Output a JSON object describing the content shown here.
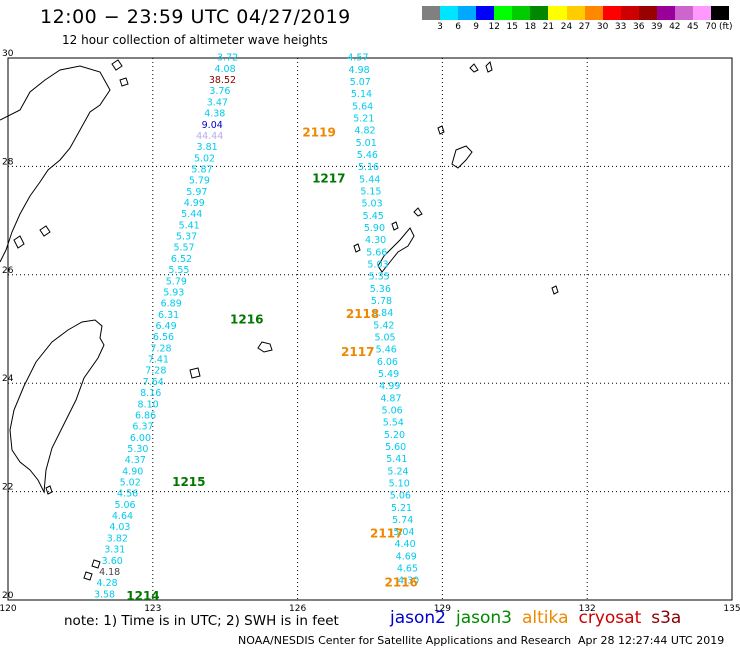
{
  "title": "12:00 − 23:59 UTC 04/27/2019",
  "subtitle": "12 hour collection of altimeter wave heights",
  "colorbar": {
    "unit": "(ft)",
    "colors": [
      "#808080",
      "#00e5ff",
      "#00a8ff",
      "#0000ff",
      "#00ff00",
      "#00cc00",
      "#008800",
      "#ffff00",
      "#ffcc00",
      "#ff8800",
      "#ff0000",
      "#cc0000",
      "#990000",
      "#990099",
      "#cc66cc",
      "#ff99ff",
      "#000000"
    ],
    "labels": [
      "3",
      "6",
      "9",
      "12",
      "15",
      "18",
      "21",
      "24",
      "27",
      "30",
      "33",
      "36",
      "39",
      "42",
      "45",
      "70"
    ]
  },
  "axes": {
    "lon_labels": [
      "120",
      "123",
      "126",
      "129",
      "132",
      "135"
    ],
    "lat_labels": [
      "30",
      "28",
      "26",
      "24",
      "22",
      "20"
    ]
  },
  "tracks": [
    {
      "id": "west",
      "color": "#00ccee",
      "values": [
        "3.72",
        "4.08",
        "38.52",
        "3.76",
        "3.47",
        "4.38",
        "9.04",
        "44.44",
        "3.81",
        "5.02",
        "5.87",
        "5.79",
        "5.97",
        "4.99",
        "5.44",
        "5.41",
        "5.37",
        "5.57",
        "6.52",
        "5.55",
        "5.79",
        "5.93",
        "6.89",
        "6.31",
        "6.49",
        "6.56",
        "7.28",
        "7.41",
        "7.28",
        "7.64",
        "8.16",
        "8.10",
        "6.86",
        "6.37",
        "6.00",
        "5.30",
        "4.37",
        "4.90",
        "5.02",
        "4.56",
        "5.06",
        "4.64",
        "4.03",
        "3.82",
        "3.31",
        "3.60",
        "4.18",
        "4.28",
        "3.58"
      ],
      "special_colors": {
        "2": "#880000",
        "6": "#0000cc",
        "7": "#bbaaee",
        "46": "#444444"
      }
    },
    {
      "id": "east",
      "color": "#00ccee",
      "values": [
        "4.57",
        "4.98",
        "5.07",
        "5.14",
        "5.64",
        "5.21",
        "4.82",
        "5.01",
        "5.46",
        "5.16",
        "5.44",
        "5.15",
        "5.03",
        "5.45",
        "5.90",
        "4.30",
        "5.66",
        "5.03",
        "5.35",
        "5.36",
        "5.78",
        "5.84",
        "5.42",
        "5.05",
        "5.46",
        "6.06",
        "5.49",
        "4.99",
        "4.87",
        "5.06",
        "5.54",
        "5.20",
        "5.60",
        "5.41",
        "5.24",
        "5.10",
        "5.06",
        "5.21",
        "5.74",
        "5.04",
        "4.40",
        "4.69",
        "4.65",
        "4.30"
      ]
    }
  ],
  "pass_labels": [
    {
      "text": "2119",
      "color": "#ee8800",
      "lon": 126.1,
      "lat": 28.55
    },
    {
      "text": "1217",
      "color": "#007700",
      "lon": 126.3,
      "lat": 27.7
    },
    {
      "text": "2118",
      "color": "#ee8800",
      "lon": 127.0,
      "lat": 25.2
    },
    {
      "text": "1216",
      "color": "#007700",
      "lon": 124.6,
      "lat": 25.1
    },
    {
      "text": "2117",
      "color": "#ee8800",
      "lon": 126.9,
      "lat": 24.5
    },
    {
      "text": "1215",
      "color": "#007700",
      "lon": 123.4,
      "lat": 22.1
    },
    {
      "text": "2117",
      "color": "#ee8800",
      "lon": 127.5,
      "lat": 21.15
    },
    {
      "text": "2116",
      "color": "#ee8800",
      "lon": 127.8,
      "lat": 20.25
    },
    {
      "text": "1214",
      "color": "#007700",
      "lon": 122.45,
      "lat": 20.0
    }
  ],
  "footer": {
    "note": "note:  1) Time is in UTC;  2) SWH is in feet",
    "satellites": [
      {
        "name": "jason2",
        "color": "#0000cc"
      },
      {
        "name": "jason3",
        "color": "#008800"
      },
      {
        "name": "altika",
        "color": "#ee8800"
      },
      {
        "name": "cryosat",
        "color": "#cc0000"
      },
      {
        "name": "s3a",
        "color": "#880000"
      }
    ],
    "credit": "NOAA/NESDIS Center for Satellite Applications and Research",
    "timestamp": "Apr 28 12:27:44 UTC 2019"
  }
}
